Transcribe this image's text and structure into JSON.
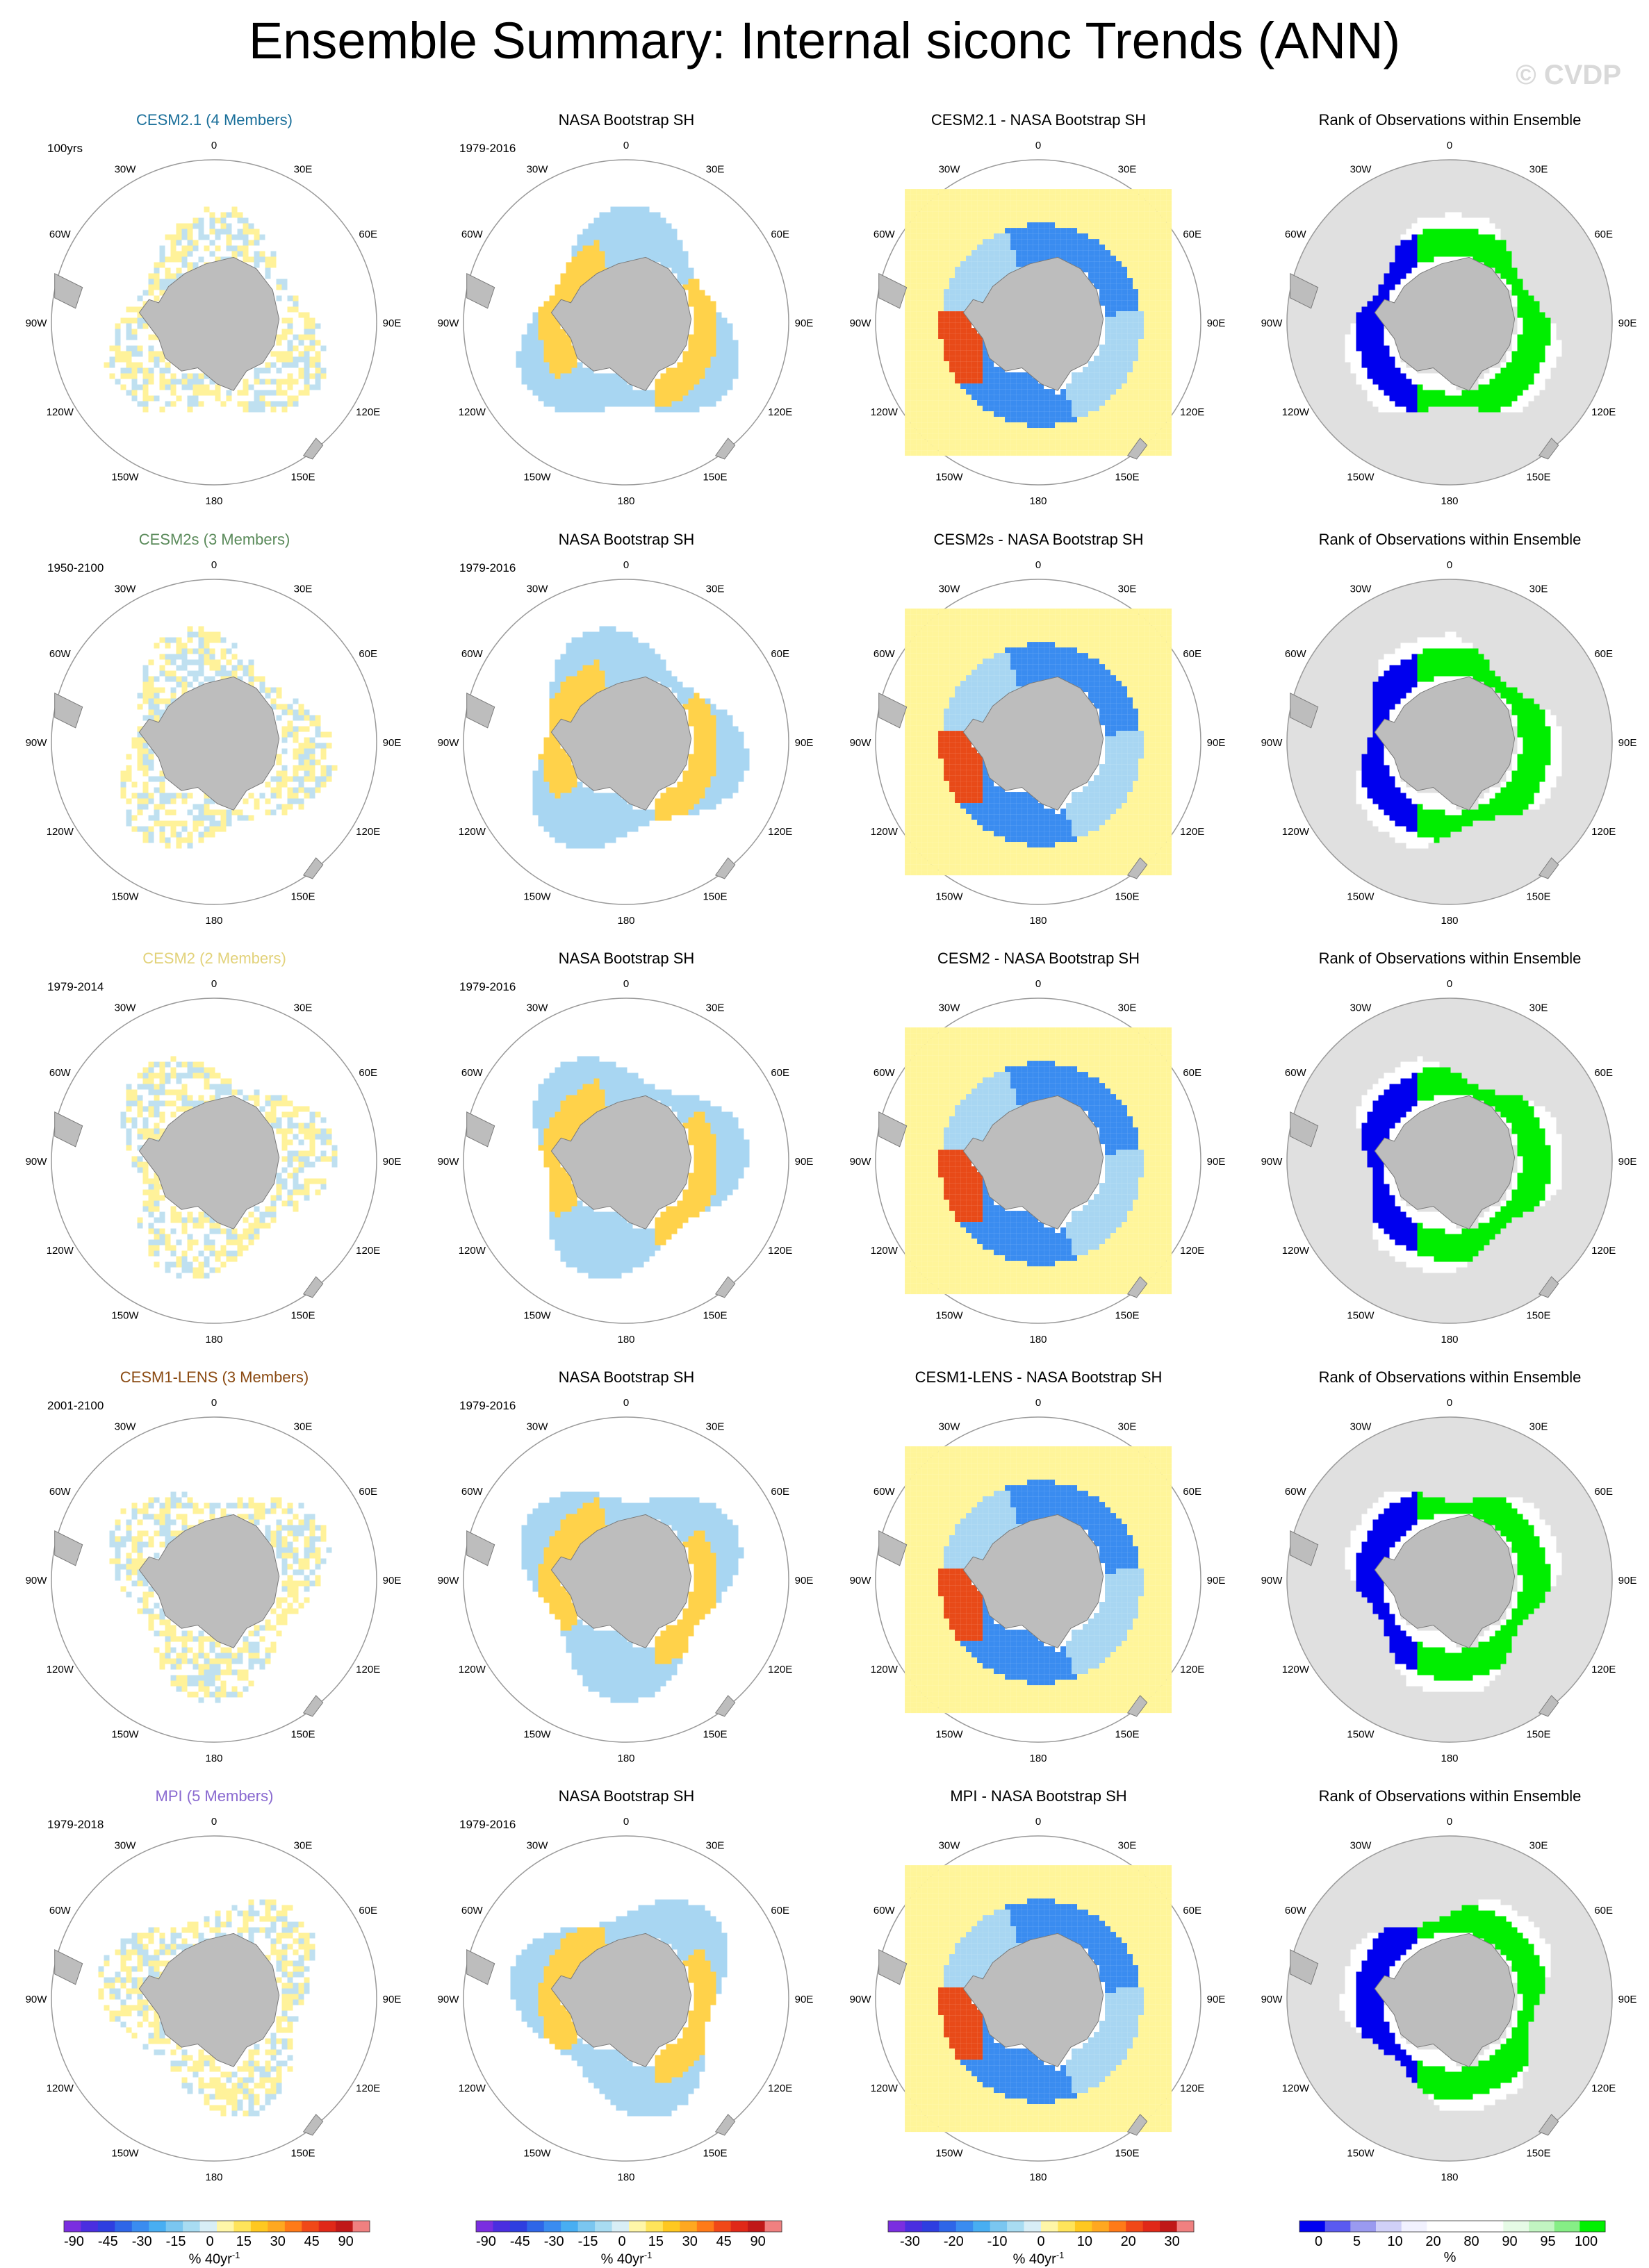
{
  "title": "Ensemble Summary: Internal siconc Trends (ANN)",
  "watermark": "© CVDP",
  "lon_labels": [
    "0",
    "30E",
    "60E",
    "90E",
    "120E",
    "150E",
    "180",
    "150W",
    "120W",
    "90W",
    "60W",
    "30W"
  ],
  "rows": [
    {
      "model": "CESM2.1 (4 Members)",
      "model_color": "#1a6f9a",
      "years": "100yrs",
      "diff_title": "CESM2.1 - NASA Bootstrap SH"
    },
    {
      "model": "CESM2s (3 Members)",
      "model_color": "#5a8a5a",
      "years": "1950-2100",
      "diff_title": "CESM2s - NASA Bootstrap SH"
    },
    {
      "model": "CESM2 (2 Members)",
      "model_color": "#e2d27a",
      "years": "1979-2014",
      "diff_title": "CESM2 - NASA Bootstrap SH"
    },
    {
      "model": "CESM1-LENS (3 Members)",
      "model_color": "#8a4a12",
      "years": "2001-2100",
      "diff_title": "CESM1-LENS - NASA Bootstrap SH"
    },
    {
      "model": "MPI (5 Members)",
      "model_color": "#8a6ad0",
      "years": "1979-2018",
      "diff_title": "MPI - NASA Bootstrap SH"
    }
  ],
  "obs_title": "NASA Bootstrap SH",
  "obs_years": "1979-2016",
  "rank_title": "Rank of Observations within Ensemble",
  "colorbars": [
    {
      "labels": [
        "-90",
        "-45",
        "-30",
        "-15",
        "0",
        "15",
        "30",
        "45",
        "90"
      ],
      "unit": "% 40yr",
      "sup": "-1",
      "colors": [
        "#7a2ee0",
        "#4a2ee0",
        "#2e3ee0",
        "#2e66e8",
        "#3a8cf0",
        "#48aef2",
        "#7ac6f0",
        "#a8dcf2",
        "#d8eef6",
        "#fff6a8",
        "#ffe45a",
        "#ffc820",
        "#ffa820",
        "#ff7a18",
        "#f04818",
        "#e02818",
        "#c01818",
        "#f08080"
      ]
    },
    {
      "labels": [
        "-90",
        "-45",
        "-30",
        "-15",
        "0",
        "15",
        "30",
        "45",
        "90"
      ],
      "unit": "% 40yr",
      "sup": "-1",
      "colors": [
        "#7a2ee0",
        "#4a2ee0",
        "#2e3ee0",
        "#2e66e8",
        "#3a8cf0",
        "#48aef2",
        "#7ac6f0",
        "#a8dcf2",
        "#d8eef6",
        "#fff6a8",
        "#ffe45a",
        "#ffc820",
        "#ffa820",
        "#ff7a18",
        "#f04818",
        "#e02818",
        "#c01818",
        "#f08080"
      ]
    },
    {
      "labels": [
        "-30",
        "-20",
        "-10",
        "0",
        "10",
        "20",
        "30"
      ],
      "unit": "% 40yr",
      "sup": "-1",
      "colors": [
        "#7a2ee0",
        "#4a2ee0",
        "#2e3ee0",
        "#2e66e8",
        "#3a8cf0",
        "#48aef2",
        "#7ac6f0",
        "#a8dcf2",
        "#d8eef6",
        "#fff6a8",
        "#ffe45a",
        "#ffc820",
        "#ffa820",
        "#ff7a18",
        "#f04818",
        "#e02818",
        "#c01818",
        "#f08080"
      ]
    },
    {
      "labels": [
        "0",
        "5",
        "10",
        "20",
        "80",
        "90",
        "95",
        "100"
      ],
      "unit": "%",
      "sup": "",
      "colors": [
        "#0000f0",
        "#5a5af0",
        "#9a9af0",
        "#d0d0f8",
        "#f2f2ff",
        "#ffffff",
        "#ffffff",
        "#ffffff",
        "#e6fbe6",
        "#c2f5c2",
        "#86ee86",
        "#00f000"
      ]
    }
  ],
  "legend_colors": {
    "land": "#bdbdbd",
    "ocean_rank": "#e0e0e0",
    "rank_low": "#0000ee",
    "rank_high": "#00ee00",
    "model_stipple_a": "#fff29a",
    "model_stipple_b": "#bfe0f0",
    "obs_warm": "#ffd24a",
    "obs_cool": "#a8d6f2",
    "diff_bg": "#fff59a",
    "diff_cool": "#3a8cf0",
    "diff_warm": "#e84a18"
  }
}
